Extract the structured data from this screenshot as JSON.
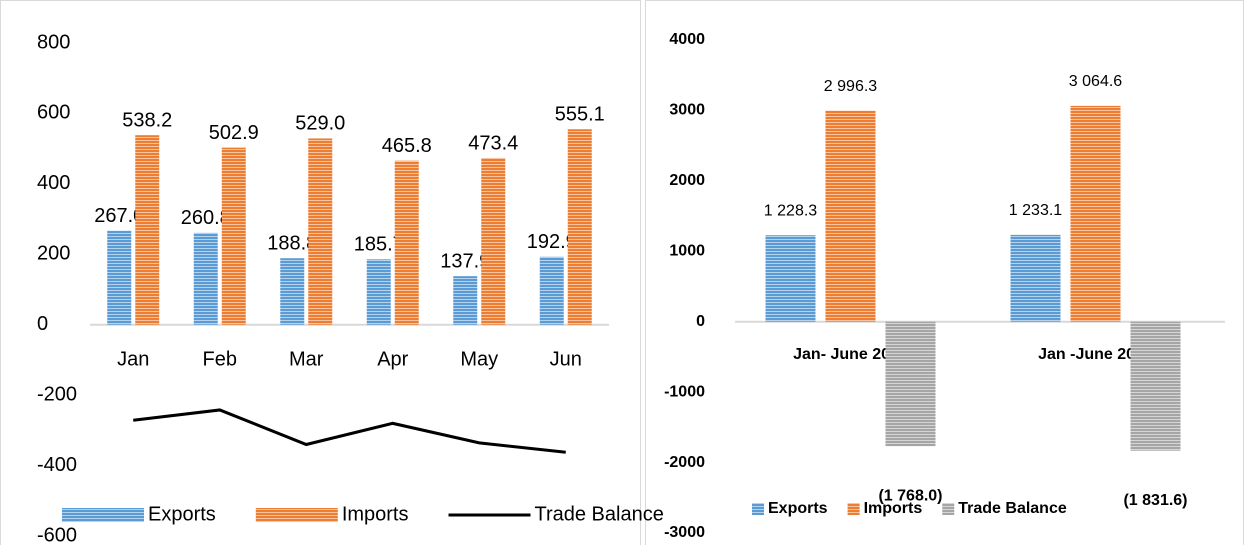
{
  "chart_data": [
    {
      "type": "bar",
      "categories": [
        "Jan",
        "Feb",
        "Mar",
        "Apr",
        "May",
        "Jun"
      ],
      "series": [
        {
          "name": "Exports",
          "color": "#5b9bd5",
          "values": [
            267.0,
            260.8,
            188.8,
            185.7,
            137.9,
            192.9
          ],
          "value_labels": [
            "267.0",
            "260.8",
            "188.8",
            "185.7",
            "137.9",
            "192.9"
          ]
        },
        {
          "name": "Imports",
          "color": "#ed7d31",
          "values": [
            538.2,
            502.9,
            529.0,
            465.8,
            473.4,
            555.1
          ],
          "value_labels": [
            "538.2",
            "502.9",
            "529.0",
            "465.8",
            "473.4",
            "555.1"
          ]
        },
        {
          "name": "Trade Balance",
          "type": "line",
          "color": "#000000",
          "values": [
            -271.2,
            -242.1,
            -340.2,
            -280.1,
            -335.5,
            -362.2
          ]
        }
      ],
      "ylim": [
        -600,
        800
      ],
      "yticks": [
        -600,
        -400,
        -200,
        0,
        200,
        400,
        600,
        800
      ],
      "legend": "bottom"
    },
    {
      "type": "bar",
      "categories": [
        "Jan- June 2014",
        "Jan -June 2015"
      ],
      "series": [
        {
          "name": "Exports",
          "color": "#5b9bd5",
          "values": [
            1228.3,
            1233.1
          ],
          "value_labels": [
            "1 228.3",
            "1 233.1"
          ]
        },
        {
          "name": "Imports",
          "color": "#ed7d31",
          "values": [
            2996.3,
            3064.6
          ],
          "value_labels": [
            "2 996.3",
            "3 064.6"
          ]
        },
        {
          "name": "Trade Balance",
          "color": "#a5a5a5",
          "values": [
            -1768.0,
            -1831.6
          ],
          "value_labels": [
            "(1 768.0)",
            "(1 831.6)"
          ]
        }
      ],
      "ylim": [
        -3000,
        4000
      ],
      "yticks": [
        -3000,
        -2000,
        -1000,
        0,
        1000,
        2000,
        3000,
        4000
      ],
      "legend": "bottom"
    }
  ]
}
